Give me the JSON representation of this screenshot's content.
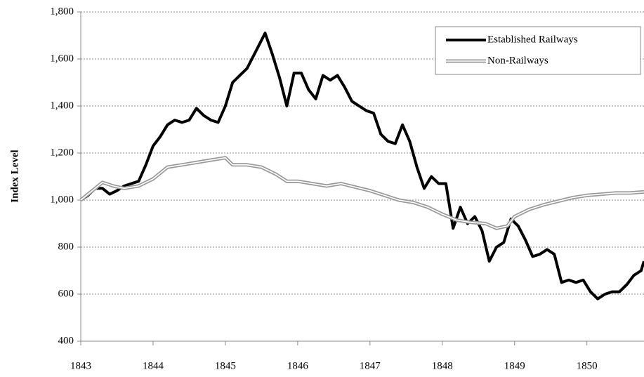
{
  "chart_data": {
    "type": "line",
    "ylabel": "Index Level",
    "xlim": [
      1843,
      1850.79
    ],
    "xticks": [
      1843,
      1844,
      1845,
      1846,
      1847,
      1848,
      1849,
      1850
    ],
    "ylim": [
      400,
      1800
    ],
    "yticks": [
      {
        "value": 400,
        "label": "400"
      },
      {
        "value": 600,
        "label": "600"
      },
      {
        "value": 800,
        "label": "800"
      },
      {
        "value": 1000,
        "label": "1,000"
      },
      {
        "value": 1200,
        "label": "1,200"
      },
      {
        "value": 1400,
        "label": "1,400"
      },
      {
        "value": 1600,
        "label": "1,600"
      },
      {
        "value": 1800,
        "label": "1,800"
      }
    ],
    "grid": true,
    "legend": "upper right",
    "series": [
      {
        "name": "Established Railways",
        "color": "#000000",
        "style": "solid",
        "x": [
          1843.0,
          1843.1,
          1843.2,
          1843.3,
          1843.4,
          1843.5,
          1843.6,
          1843.7,
          1843.8,
          1843.9,
          1844.0,
          1844.1,
          1844.2,
          1844.3,
          1844.4,
          1844.5,
          1844.6,
          1844.7,
          1844.8,
          1844.9,
          1845.0,
          1845.1,
          1845.2,
          1845.3,
          1845.4,
          1845.5,
          1845.55,
          1845.65,
          1845.75,
          1845.85,
          1845.95,
          1846.05,
          1846.15,
          1846.25,
          1846.35,
          1846.45,
          1846.55,
          1846.65,
          1846.75,
          1846.85,
          1846.95,
          1847.05,
          1847.15,
          1847.25,
          1847.35,
          1847.45,
          1847.55,
          1847.65,
          1847.75,
          1847.85,
          1847.95,
          1848.05,
          1848.15,
          1848.25,
          1848.35,
          1848.45,
          1848.55,
          1848.65,
          1848.75,
          1848.85,
          1848.95,
          1849.05,
          1849.15,
          1849.25,
          1849.35,
          1849.45,
          1849.55,
          1849.65,
          1849.75,
          1849.85,
          1849.95,
          1850.05,
          1850.15,
          1850.25,
          1850.35,
          1850.45,
          1850.55,
          1850.65,
          1850.75,
          1850.79
        ],
        "values": [
          1000,
          1020,
          1050,
          1050,
          1025,
          1040,
          1060,
          1070,
          1080,
          1150,
          1230,
          1270,
          1320,
          1340,
          1330,
          1340,
          1390,
          1360,
          1340,
          1330,
          1400,
          1500,
          1530,
          1560,
          1620,
          1680,
          1710,
          1620,
          1520,
          1400,
          1540,
          1540,
          1470,
          1430,
          1530,
          1510,
          1530,
          1480,
          1420,
          1400,
          1380,
          1370,
          1280,
          1250,
          1240,
          1320,
          1250,
          1140,
          1050,
          1100,
          1070,
          1070,
          880,
          970,
          900,
          930,
          870,
          740,
          800,
          820,
          920,
          890,
          830,
          760,
          770,
          790,
          770,
          650,
          660,
          650,
          660,
          610,
          580,
          600,
          610,
          610,
          640,
          680,
          700,
          740
        ]
      },
      {
        "name": "Non-Railways",
        "color": "#999999",
        "style": "double",
        "x": [
          1843.0,
          1843.2,
          1843.3,
          1843.45,
          1843.6,
          1843.8,
          1844.0,
          1844.2,
          1844.4,
          1844.6,
          1844.8,
          1845.0,
          1845.1,
          1845.3,
          1845.5,
          1845.7,
          1845.85,
          1846.0,
          1846.2,
          1846.4,
          1846.6,
          1846.8,
          1847.0,
          1847.2,
          1847.4,
          1847.6,
          1847.8,
          1848.0,
          1848.2,
          1848.4,
          1848.6,
          1848.75,
          1848.9,
          1849.0,
          1849.2,
          1849.4,
          1849.6,
          1849.8,
          1850.0,
          1850.2,
          1850.4,
          1850.6,
          1850.79
        ],
        "values": [
          1000,
          1050,
          1075,
          1060,
          1050,
          1060,
          1090,
          1140,
          1150,
          1160,
          1170,
          1180,
          1150,
          1150,
          1140,
          1110,
          1080,
          1080,
          1070,
          1060,
          1070,
          1055,
          1040,
          1020,
          1000,
          990,
          970,
          940,
          915,
          905,
          900,
          880,
          890,
          930,
          960,
          980,
          995,
          1010,
          1020,
          1025,
          1030,
          1030,
          1035
        ]
      }
    ]
  }
}
